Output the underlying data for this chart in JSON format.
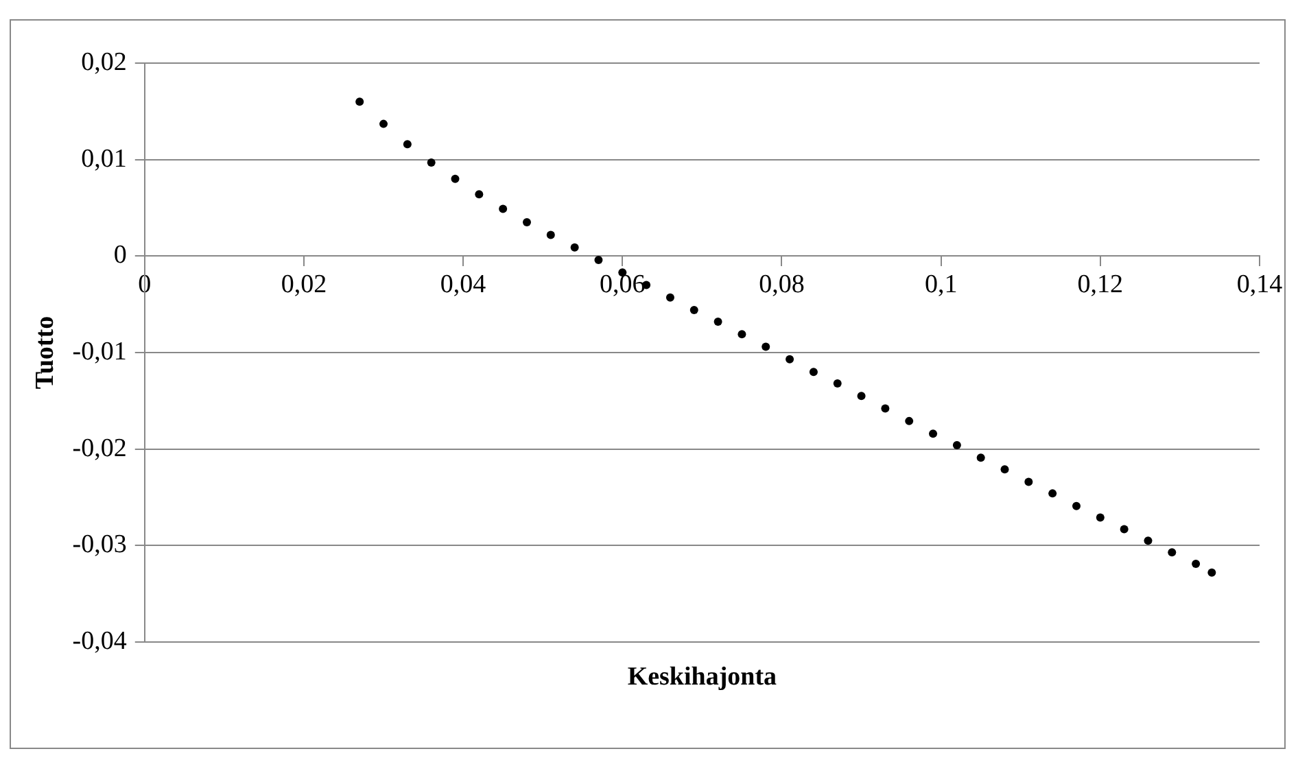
{
  "chart_data": {
    "type": "scatter",
    "xlabel": "Keskihajonta",
    "ylabel": "Tuotto",
    "xlim": [
      0,
      0.14
    ],
    "xticks": [
      {
        "value": 0,
        "label": "0"
      },
      {
        "value": 0.02,
        "label": "0,02"
      },
      {
        "value": 0.04,
        "label": "0,04"
      },
      {
        "value": 0.06,
        "label": "0,06"
      },
      {
        "value": 0.08,
        "label": "0,08"
      },
      {
        "value": 0.1,
        "label": "0,1"
      },
      {
        "value": 0.12,
        "label": "0,12"
      },
      {
        "value": 0.14,
        "label": "0,14"
      }
    ],
    "ylim": [
      -0.04,
      0.02
    ],
    "yticks": [
      {
        "value": -0.04,
        "label": "-0,04"
      },
      {
        "value": -0.03,
        "label": "-0,03"
      },
      {
        "value": -0.02,
        "label": "-0,02"
      },
      {
        "value": -0.01,
        "label": "-0,01"
      },
      {
        "value": 0,
        "label": "0"
      },
      {
        "value": 0.01,
        "label": "0,01"
      },
      {
        "value": 0.02,
        "label": "0,02"
      }
    ],
    "grid": "y",
    "marker": "circle",
    "series": [
      {
        "color": "#000000",
        "x": [
          0.027,
          0.03,
          0.033,
          0.036,
          0.039,
          0.042,
          0.045,
          0.048,
          0.051,
          0.054,
          0.057,
          0.06,
          0.063,
          0.066,
          0.069,
          0.072,
          0.075,
          0.078,
          0.081,
          0.084,
          0.087,
          0.09,
          0.093,
          0.096,
          0.099,
          0.102,
          0.105,
          0.108,
          0.111,
          0.114,
          0.117,
          0.12,
          0.123,
          0.126,
          0.129,
          0.132,
          0.134
        ],
        "values": [
          0.016,
          0.0137,
          0.0116,
          0.0097,
          0.008,
          0.0064,
          0.0049,
          0.0035,
          0.0022,
          0.0009,
          -0.0004,
          -0.0017,
          -0.003,
          -0.0043,
          -0.0056,
          -0.0068,
          -0.0081,
          -0.0094,
          -0.0107,
          -0.012,
          -0.0132,
          -0.0145,
          -0.0158,
          -0.0171,
          -0.0184,
          -0.0196,
          -0.0209,
          -0.0221,
          -0.0234,
          -0.0246,
          -0.0259,
          -0.0271,
          -0.0283,
          -0.0295,
          -0.0307,
          -0.0319,
          -0.0328
        ]
      }
    ]
  }
}
